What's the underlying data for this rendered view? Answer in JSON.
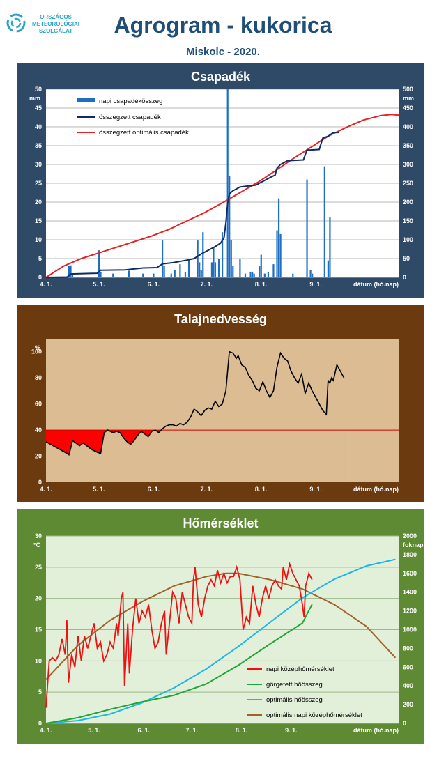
{
  "header": {
    "logo_lines": [
      "ORSZÁGOS",
      "METEOROLÓGIAI",
      "SZOLGÁLAT"
    ],
    "title": "Agrogram - kukorica",
    "subtitle": "Miskolc - 2020."
  },
  "colors": {
    "title": "#1f4e79",
    "panel1_bg": "#2e4a66",
    "panel2_bg": "#6b3a0f",
    "panel3_bg": "#5d8a33"
  },
  "chart_data": [
    {
      "type": "bar",
      "title": "Csapadék",
      "ylabel": "mm",
      "ylim": [
        0,
        50
      ],
      "y2lim": [
        0,
        500
      ],
      "yticks": [
        "0",
        "5",
        "10",
        "15",
        "20",
        "25",
        "30",
        "35",
        "40",
        "45",
        "50"
      ],
      "y2ticks": [
        "0",
        "50",
        "100",
        "150",
        "200",
        "250",
        "300",
        "350",
        "400",
        "450",
        "500"
      ],
      "xticks": [
        "4. 1.",
        "5. 1.",
        "6. 1.",
        "7. 1.",
        "8. 1.",
        "9. 1."
      ],
      "xlabel": "dátum (hó.nap)",
      "legend": [
        "napi csapadékösszeg",
        "összegzett csapadék",
        "összegzett optimális csapadék"
      ],
      "daily_precip": [
        [
          13,
          3.0
        ],
        [
          14,
          3.2
        ],
        [
          15,
          1.0
        ],
        [
          30,
          7.2
        ],
        [
          31,
          1.5
        ],
        [
          38,
          1.0
        ],
        [
          47,
          1.8
        ],
        [
          55,
          1.0
        ],
        [
          61,
          1.0
        ],
        [
          66,
          9.8
        ],
        [
          67,
          3.0
        ],
        [
          71,
          1.0
        ],
        [
          73,
          2.0
        ],
        [
          76,
          3.5
        ],
        [
          79,
          1.5
        ],
        [
          81,
          5.0
        ],
        [
          86,
          9.8
        ],
        [
          87,
          4.0
        ],
        [
          88,
          2.0
        ],
        [
          89,
          12.0
        ],
        [
          94,
          4.0
        ],
        [
          95,
          8.0
        ],
        [
          96,
          4.0
        ],
        [
          98,
          5.0
        ],
        [
          100,
          12.0
        ],
        [
          103,
          50.0
        ],
        [
          104,
          27.0
        ],
        [
          105,
          10.0
        ],
        [
          106,
          3.0
        ],
        [
          110,
          5.0
        ],
        [
          113,
          1.0
        ],
        [
          116,
          1.5
        ],
        [
          117,
          1.5
        ],
        [
          118,
          1.0
        ],
        [
          121,
          3.0
        ],
        [
          122,
          6.0
        ],
        [
          124,
          1.0
        ],
        [
          126,
          1.5
        ],
        [
          129,
          3.5
        ],
        [
          131,
          12.5
        ],
        [
          132,
          21.0
        ],
        [
          133,
          11.5
        ],
        [
          140,
          1.0
        ],
        [
          148,
          26.0
        ],
        [
          150,
          2.0
        ],
        [
          151,
          1.0
        ],
        [
          158,
          29.5
        ],
        [
          160,
          4.5
        ],
        [
          161,
          16.0
        ]
      ],
      "cumulative_precip": [
        [
          0,
          0
        ],
        [
          12,
          1
        ],
        [
          14,
          9
        ],
        [
          29,
          11
        ],
        [
          31,
          19
        ],
        [
          45,
          20
        ],
        [
          55,
          25
        ],
        [
          63,
          26
        ],
        [
          66,
          36
        ],
        [
          72,
          39
        ],
        [
          80,
          46
        ],
        [
          84,
          50
        ],
        [
          88,
          62
        ],
        [
          92,
          72
        ],
        [
          96,
          82
        ],
        [
          99,
          91
        ],
        [
          101,
          105
        ],
        [
          102,
          145
        ],
        [
          103,
          195
        ],
        [
          104,
          222
        ],
        [
          106,
          230
        ],
        [
          110,
          240
        ],
        [
          115,
          243
        ],
        [
          119,
          245
        ],
        [
          123,
          255
        ],
        [
          127,
          265
        ],
        [
          130,
          272
        ],
        [
          131,
          290
        ],
        [
          133,
          300
        ],
        [
          137,
          310
        ],
        [
          146,
          312
        ],
        [
          148,
          338
        ],
        [
          155,
          340
        ],
        [
          157,
          370
        ],
        [
          160,
          375
        ],
        [
          163,
          385
        ],
        [
          166,
          385
        ]
      ],
      "optimal_cumulative_precip": [
        [
          0,
          0
        ],
        [
          10,
          30
        ],
        [
          20,
          50
        ],
        [
          30,
          65
        ],
        [
          40,
          80
        ],
        [
          50,
          95
        ],
        [
          60,
          110
        ],
        [
          70,
          128
        ],
        [
          80,
          150
        ],
        [
          90,
          172
        ],
        [
          100,
          198
        ],
        [
          110,
          225
        ],
        [
          120,
          252
        ],
        [
          130,
          283
        ],
        [
          140,
          315
        ],
        [
          150,
          345
        ],
        [
          160,
          375
        ],
        [
          170,
          398
        ],
        [
          180,
          418
        ],
        [
          190,
          430
        ],
        [
          196,
          433
        ],
        [
          200,
          431
        ]
      ]
    },
    {
      "type": "line",
      "title": "Talajnedvesség",
      "ylabel": "%",
      "ylim": [
        0,
        110
      ],
      "yticks": [
        "0",
        "20",
        "40",
        "60",
        "80",
        "100"
      ],
      "xticks": [
        "4. 1.",
        "5. 1.",
        "6. 1.",
        "7. 1.",
        "8. 1.",
        "9. 1."
      ],
      "xlabel": "dátum (hó.nap)",
      "threshold": 40,
      "soil_moisture": [
        [
          0,
          31
        ],
        [
          4,
          28
        ],
        [
          8,
          25
        ],
        [
          12,
          22
        ],
        [
          13,
          21
        ],
        [
          14,
          26
        ],
        [
          15,
          32
        ],
        [
          17,
          30
        ],
        [
          19,
          28
        ],
        [
          21,
          30
        ],
        [
          24,
          27
        ],
        [
          26,
          25
        ],
        [
          29,
          23
        ],
        [
          31,
          22
        ],
        [
          33,
          38
        ],
        [
          35,
          40
        ],
        [
          38,
          38
        ],
        [
          40,
          39
        ],
        [
          42,
          38
        ],
        [
          44,
          34
        ],
        [
          46,
          31
        ],
        [
          48,
          29
        ],
        [
          50,
          32
        ],
        [
          52,
          36
        ],
        [
          54,
          39
        ],
        [
          56,
          37
        ],
        [
          58,
          35
        ],
        [
          60,
          39
        ],
        [
          62,
          40
        ],
        [
          64,
          38
        ],
        [
          66,
          41
        ],
        [
          68,
          43
        ],
        [
          70,
          44
        ],
        [
          72,
          44
        ],
        [
          74,
          43
        ],
        [
          76,
          45
        ],
        [
          78,
          44
        ],
        [
          80,
          46
        ],
        [
          82,
          50
        ],
        [
          84,
          56
        ],
        [
          86,
          54
        ],
        [
          88,
          51
        ],
        [
          90,
          55
        ],
        [
          92,
          57
        ],
        [
          94,
          56
        ],
        [
          96,
          62
        ],
        [
          98,
          58
        ],
        [
          100,
          60
        ],
        [
          102,
          70
        ],
        [
          104,
          100
        ],
        [
          106,
          99
        ],
        [
          108,
          95
        ],
        [
          109,
          97
        ],
        [
          111,
          90
        ],
        [
          113,
          88
        ],
        [
          115,
          82
        ],
        [
          117,
          78
        ],
        [
          119,
          72
        ],
        [
          121,
          70
        ],
        [
          123,
          77
        ],
        [
          125,
          70
        ],
        [
          127,
          65
        ],
        [
          129,
          70
        ],
        [
          131,
          88
        ],
        [
          133,
          99
        ],
        [
          135,
          95
        ],
        [
          137,
          93
        ],
        [
          139,
          85
        ],
        [
          141,
          80
        ],
        [
          143,
          76
        ],
        [
          145,
          83
        ],
        [
          147,
          68
        ],
        [
          149,
          76
        ],
        [
          151,
          70
        ],
        [
          153,
          65
        ],
        [
          155,
          60
        ],
        [
          157,
          55
        ],
        [
          159,
          52
        ],
        [
          160,
          78
        ],
        [
          161,
          76
        ],
        [
          162,
          80
        ],
        [
          163,
          78
        ],
        [
          165,
          90
        ],
        [
          167,
          85
        ],
        [
          169,
          80
        ]
      ]
    },
    {
      "type": "line",
      "title": "Hőmérséklet",
      "ylabel": "°C",
      "y2label": "foknap",
      "ylim": [
        0,
        30
      ],
      "y2lim": [
        0,
        2000
      ],
      "yticks": [
        "0",
        "5",
        "10",
        "15",
        "20",
        "25",
        "30"
      ],
      "y2ticks": [
        "0",
        "200",
        "400",
        "600",
        "800",
        "1000",
        "1200",
        "1400",
        "1600",
        "1800",
        "2000"
      ],
      "xticks": [
        "4. 1.",
        "5. 1.",
        "6. 1.",
        "7. 1.",
        "8. 1.",
        "9. 1."
      ],
      "xlabel": "dátum (hó.nap)",
      "legend": [
        "napi középhőmérséklet",
        "görgetett hőösszeg",
        "optimális hőösszeg",
        "optimális napi középhőmérséklet"
      ],
      "daily_mean_temp": [
        [
          0,
          2.5
        ],
        [
          2,
          10
        ],
        [
          4,
          10.5
        ],
        [
          6,
          10
        ],
        [
          8,
          11
        ],
        [
          10,
          13.5
        ],
        [
          12,
          11
        ],
        [
          13,
          16.5
        ],
        [
          14,
          6.5
        ],
        [
          16,
          11
        ],
        [
          18,
          9
        ],
        [
          20,
          14
        ],
        [
          22,
          10
        ],
        [
          24,
          14
        ],
        [
          26,
          12
        ],
        [
          28,
          14
        ],
        [
          30,
          16
        ],
        [
          32,
          12
        ],
        [
          34,
          13
        ],
        [
          36,
          10
        ],
        [
          38,
          11
        ],
        [
          40,
          13
        ],
        [
          42,
          12
        ],
        [
          44,
          16
        ],
        [
          45,
          14
        ],
        [
          47,
          20
        ],
        [
          48,
          21
        ],
        [
          49,
          6
        ],
        [
          51,
          16
        ],
        [
          52,
          8
        ],
        [
          54,
          15
        ],
        [
          56,
          20
        ],
        [
          58,
          16
        ],
        [
          60,
          18
        ],
        [
          62,
          17
        ],
        [
          64,
          19
        ],
        [
          66,
          15
        ],
        [
          68,
          12
        ],
        [
          70,
          13
        ],
        [
          72,
          16
        ],
        [
          74,
          18
        ],
        [
          75,
          11
        ],
        [
          77,
          16
        ],
        [
          79,
          21
        ],
        [
          81,
          20
        ],
        [
          83,
          16
        ],
        [
          85,
          21
        ],
        [
          87,
          19
        ],
        [
          89,
          17
        ],
        [
          91,
          16
        ],
        [
          92,
          23
        ],
        [
          93,
          25
        ],
        [
          95,
          19
        ],
        [
          97,
          17
        ],
        [
          99,
          20
        ],
        [
          101,
          22
        ],
        [
          103,
          23
        ],
        [
          105,
          22
        ],
        [
          107,
          24.5
        ],
        [
          109,
          22.5
        ],
        [
          111,
          24
        ],
        [
          113,
          22.5
        ],
        [
          115,
          23.5
        ],
        [
          117,
          23.5
        ],
        [
          119,
          25
        ],
        [
          121,
          23
        ],
        [
          123,
          15
        ],
        [
          125,
          17
        ],
        [
          127,
          16
        ],
        [
          129,
          22
        ],
        [
          131,
          19
        ],
        [
          133,
          17
        ],
        [
          135,
          20
        ],
        [
          137,
          22
        ],
        [
          139,
          20
        ],
        [
          141,
          22
        ],
        [
          143,
          23
        ],
        [
          145,
          22
        ],
        [
          147,
          21.5
        ],
        [
          148,
          25
        ],
        [
          150,
          23
        ],
        [
          152,
          25.5
        ],
        [
          154,
          24
        ],
        [
          156,
          23
        ],
        [
          158,
          22
        ],
        [
          160,
          19
        ],
        [
          161,
          17
        ],
        [
          162,
          22
        ],
        [
          164,
          24
        ],
        [
          166,
          23
        ]
      ],
      "rolling_degree_days": [
        [
          0,
          0
        ],
        [
          20,
          60
        ],
        [
          40,
          150
        ],
        [
          60,
          230
        ],
        [
          80,
          300
        ],
        [
          100,
          420
        ],
        [
          120,
          620
        ],
        [
          140,
          850
        ],
        [
          160,
          1070
        ],
        [
          166,
          1270
        ]
      ],
      "optimal_degree_days": [
        [
          0,
          0
        ],
        [
          20,
          30
        ],
        [
          40,
          100
        ],
        [
          60,
          220
        ],
        [
          80,
          380
        ],
        [
          100,
          580
        ],
        [
          120,
          820
        ],
        [
          140,
          1080
        ],
        [
          160,
          1340
        ],
        [
          180,
          1540
        ],
        [
          200,
          1680
        ],
        [
          218,
          1750
        ]
      ],
      "optimal_daily_temp": [
        [
          0,
          7.0
        ],
        [
          20,
          12.5
        ],
        [
          40,
          16.5
        ],
        [
          60,
          19.5
        ],
        [
          80,
          22.0
        ],
        [
          100,
          23.5
        ],
        [
          112,
          24.0
        ],
        [
          120,
          24.0
        ],
        [
          140,
          23.0
        ],
        [
          160,
          21.5
        ],
        [
          180,
          19.0
        ],
        [
          200,
          15.5
        ],
        [
          218,
          10.5
        ]
      ]
    }
  ]
}
